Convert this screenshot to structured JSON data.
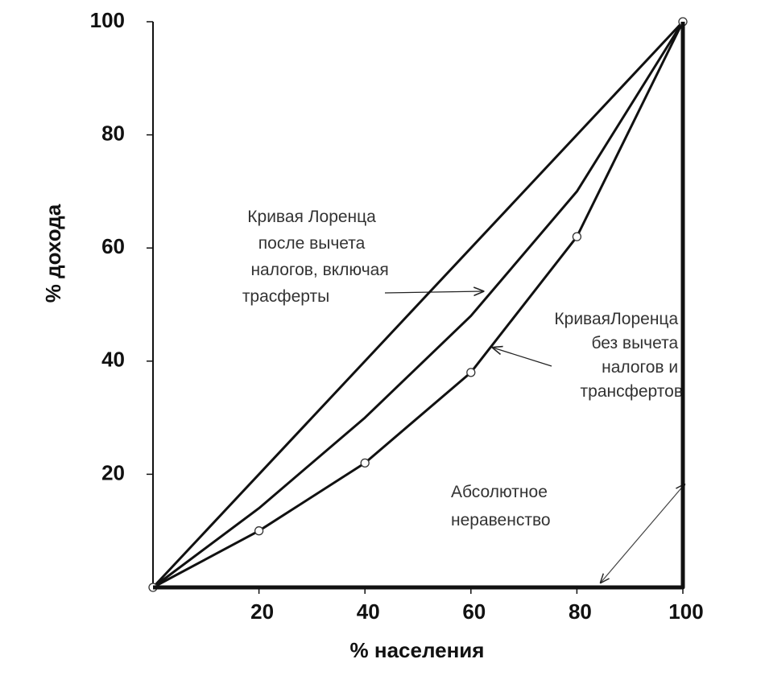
{
  "chart_data": {
    "type": "line",
    "x_label": "% населения",
    "y_label": "% дохода",
    "xlim": [
      0,
      100
    ],
    "ylim": [
      0,
      100
    ],
    "xticks": [
      20,
      40,
      60,
      80,
      100
    ],
    "yticks": [
      20,
      40,
      60,
      80,
      100
    ],
    "series": [
      {
        "x": [
          0,
          100
        ],
        "values": [
          0,
          100
        ],
        "color": "#111111",
        "width": 3,
        "markers": false
      },
      {
        "x": [
          0,
          20,
          40,
          60,
          80,
          100
        ],
        "values": [
          0,
          14,
          30,
          48,
          70,
          100
        ],
        "color": "#111111",
        "width": 3,
        "markers": false
      },
      {
        "x": [
          0,
          20,
          40,
          60,
          80,
          100
        ],
        "values": [
          0,
          10,
          22,
          38,
          62,
          100
        ],
        "color": "#111111",
        "width": 3,
        "markers": true
      },
      {
        "x": [
          0,
          100,
          100
        ],
        "values": [
          0,
          0,
          100
        ],
        "color": "#111111",
        "width": 5,
        "markers": false
      }
    ],
    "annotations": [
      {
        "lines": [
          "Кривая Лоренца",
          "после вычета",
          "налогов, включая",
          "трасферты"
        ]
      },
      {
        "lines": [
          "КриваяЛоренца",
          "без вычета",
          "налогов и",
          "трансфертов"
        ]
      },
      {
        "lines": [
          "Абсолютное",
          "неравенство"
        ]
      }
    ]
  }
}
